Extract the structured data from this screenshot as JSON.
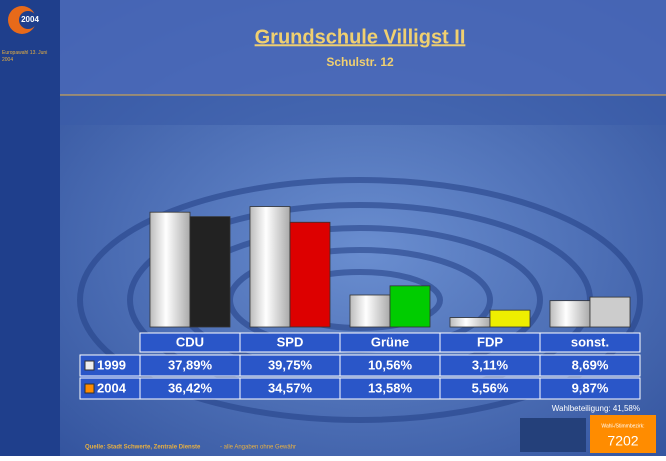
{
  "chart_data": {
    "type": "bar",
    "title": "Grundschule Villigst II",
    "subtitle": "Schulstr. 12",
    "categories": [
      "CDU",
      "SPD",
      "Grüne",
      "FDP",
      "sonst."
    ],
    "series": [
      {
        "name": "1999",
        "color": "#eeeeee",
        "values": [
          37.89,
          39.75,
          10.56,
          3.11,
          8.69
        ],
        "value_labels": [
          "37,89%",
          "39,75%",
          "10,56%",
          "3,11%",
          "8,69%"
        ]
      },
      {
        "name": "2004",
        "color": "#ff8c00",
        "colors": [
          "#222222",
          "#dd0000",
          "#00cc00",
          "#eeee00",
          "#cccccc"
        ],
        "values": [
          36.42,
          34.57,
          13.58,
          5.56,
          9.87
        ],
        "value_labels": [
          "36,42%",
          "34,57%",
          "13,58%",
          "5,56%",
          "9,87%"
        ]
      }
    ],
    "annotations": {
      "turnout": "Wahlbeteiligung: 41,58%",
      "source": "Quelle: Stadt Schwerte, Zentrale Dienste",
      "disclaimer": "- alle Angaben ohne Gewähr",
      "district_label": "Wahl-/Stimmbezirk:",
      "district": "7202",
      "logo_year": "2004",
      "logo_text": "Europawahl 13. Juni 2004"
    }
  }
}
